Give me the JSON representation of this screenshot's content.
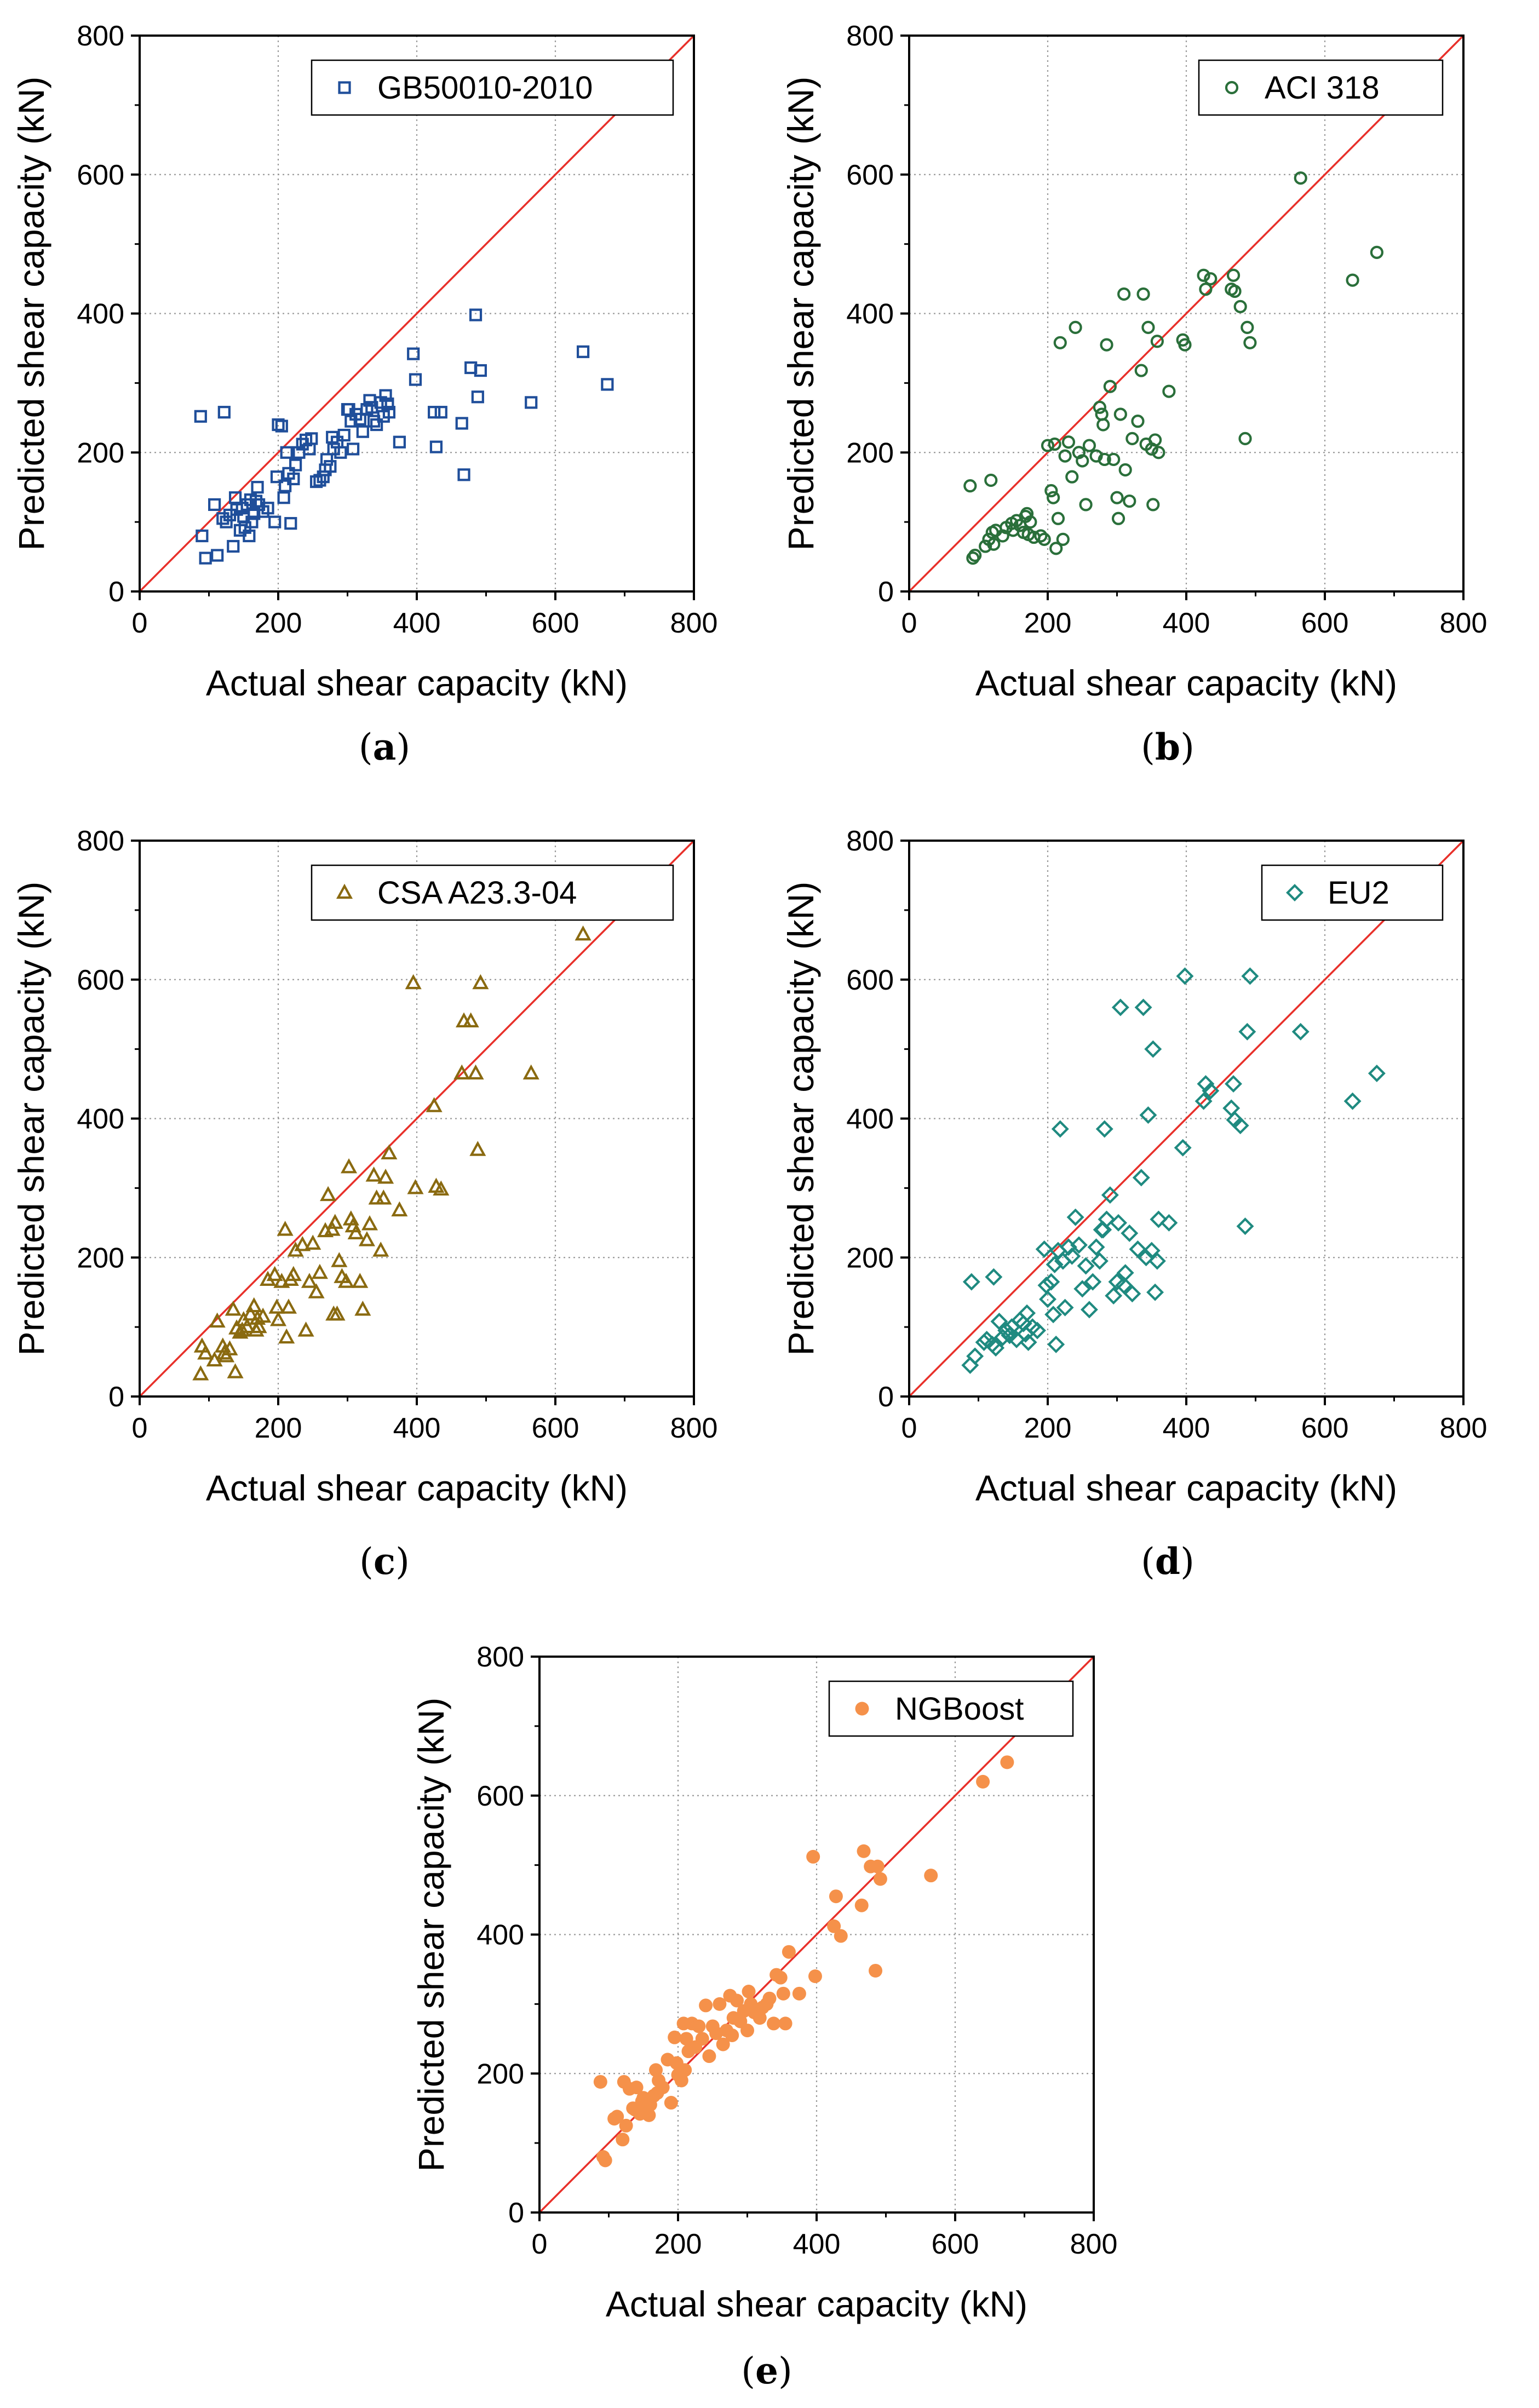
{
  "figure": {
    "xlabel": "Actual shear capacity (kN)",
    "ylabel": "Predicted shear capacity (kN)",
    "xlim": [
      0,
      800
    ],
    "ylim": [
      0,
      800
    ],
    "ticks": [
      "0",
      "200",
      "400",
      "600",
      "800"
    ]
  },
  "chart_data": [
    {
      "type": "scatter",
      "panel": "a",
      "caption": "a",
      "series_name": "GB50010-2010",
      "marker": "square-open",
      "color": "#1f4e9a",
      "reference_line": "y = x",
      "line_color": "#e8302a",
      "xlabel": "Actual shear capacity (kN)",
      "ylabel": "Predicted shear capacity (kN)",
      "xlim": [
        0,
        800
      ],
      "ylim": [
        0,
        800
      ],
      "x": [
        88,
        90,
        95,
        108,
        112,
        120,
        122,
        125,
        130,
        135,
        138,
        140,
        145,
        148,
        150,
        152,
        155,
        158,
        160,
        162,
        165,
        168,
        170,
        172,
        178,
        185,
        195,
        198,
        200,
        205,
        208,
        210,
        212,
        215,
        218,
        222,
        225,
        230,
        235,
        240,
        245,
        248,
        255,
        260,
        265,
        268,
        270,
        275,
        278,
        280,
        285,
        290,
        295,
        300,
        302,
        305,
        308,
        312,
        318,
        322,
        328,
        332,
        335,
        338,
        342,
        348,
        352,
        355,
        358,
        360,
        375,
        395,
        398,
        425,
        428,
        435,
        465,
        468,
        478,
        485,
        488,
        492,
        565,
        640,
        675
      ],
      "y": [
        252,
        80,
        48,
        125,
        52,
        105,
        258,
        100,
        110,
        65,
        135,
        118,
        88,
        120,
        108,
        92,
        125,
        80,
        132,
        100,
        112,
        130,
        150,
        125,
        115,
        120,
        100,
        165,
        240,
        238,
        135,
        152,
        200,
        170,
        98,
        162,
        182,
        200,
        212,
        218,
        205,
        220,
        158,
        160,
        165,
        175,
        190,
        180,
        222,
        205,
        215,
        200,
        225,
        262,
        262,
        245,
        205,
        255,
        248,
        230,
        262,
        275,
        265,
        245,
        240,
        272,
        252,
        282,
        270,
        258,
        215,
        342,
        305,
        258,
        208,
        258,
        242,
        168,
        322,
        398,
        280,
        318,
        272,
        345,
        298
      ]
    },
    {
      "type": "scatter",
      "panel": "b",
      "caption": "b",
      "series_name": "ACI 318",
      "marker": "circle-open",
      "color": "#2a6f3a",
      "reference_line": "y = x",
      "line_color": "#e8302a",
      "xlabel": "Actual shear capacity (kN)",
      "ylabel": "Predicted shear capacity (kN)",
      "xlim": [
        0,
        800
      ],
      "ylim": [
        0,
        800
      ],
      "x": [
        88,
        92,
        95,
        110,
        115,
        118,
        120,
        122,
        125,
        135,
        140,
        148,
        150,
        155,
        160,
        165,
        168,
        170,
        172,
        175,
        180,
        190,
        195,
        200,
        205,
        208,
        210,
        212,
        215,
        218,
        222,
        225,
        230,
        235,
        240,
        245,
        250,
        255,
        260,
        270,
        275,
        278,
        280,
        282,
        285,
        290,
        295,
        300,
        302,
        305,
        310,
        312,
        318,
        322,
        330,
        335,
        338,
        342,
        345,
        350,
        352,
        355,
        358,
        360,
        375,
        395,
        398,
        425,
        428,
        435,
        465,
        468,
        470,
        478,
        485,
        488,
        492,
        565,
        640,
        675
      ],
      "y": [
        152,
        48,
        52,
        65,
        75,
        160,
        85,
        68,
        88,
        80,
        92,
        98,
        88,
        102,
        95,
        85,
        108,
        112,
        82,
        100,
        78,
        80,
        75,
        210,
        145,
        135,
        212,
        62,
        105,
        358,
        75,
        195,
        215,
        165,
        380,
        200,
        188,
        125,
        210,
        195,
        265,
        255,
        240,
        190,
        355,
        295,
        190,
        135,
        105,
        255,
        428,
        175,
        130,
        220,
        245,
        318,
        428,
        212,
        380,
        205,
        125,
        218,
        360,
        200,
        288,
        362,
        355,
        455,
        435,
        450,
        435,
        455,
        432,
        410,
        220,
        380,
        358,
        595,
        448,
        488
      ]
    },
    {
      "type": "scatter",
      "panel": "c",
      "caption": "c",
      "series_name": "CSA A23.3-04",
      "marker": "triangle-open",
      "color": "#8a6a10",
      "reference_line": "y = x",
      "line_color": "#e8302a",
      "xlabel": "Actual shear capacity (kN)",
      "ylabel": "Predicted shear capacity (kN)",
      "xlim": [
        0,
        800
      ],
      "ylim": [
        0,
        800
      ],
      "x": [
        88,
        90,
        95,
        108,
        112,
        120,
        122,
        125,
        130,
        135,
        138,
        140,
        145,
        148,
        150,
        155,
        160,
        165,
        168,
        170,
        172,
        178,
        185,
        195,
        198,
        200,
        205,
        210,
        212,
        215,
        218,
        222,
        225,
        235,
        240,
        245,
        250,
        255,
        260,
        268,
        272,
        278,
        280,
        282,
        285,
        288,
        292,
        298,
        302,
        305,
        308,
        312,
        318,
        322,
        328,
        332,
        338,
        342,
        348,
        352,
        355,
        360,
        375,
        395,
        398,
        425,
        428,
        435,
        465,
        468,
        478,
        485,
        488,
        492,
        565,
        640
      ],
      "y": [
        32,
        72,
        62,
        52,
        108,
        72,
        62,
        58,
        68,
        125,
        35,
        98,
        92,
        95,
        110,
        100,
        118,
        130,
        95,
        112,
        100,
        115,
        168,
        175,
        128,
        110,
        165,
        240,
        85,
        128,
        168,
        175,
        210,
        218,
        95,
        165,
        220,
        150,
        178,
        238,
        290,
        240,
        118,
        250,
        118,
        195,
        172,
        165,
        330,
        255,
        245,
        235,
        165,
        125,
        225,
        248,
        318,
        285,
        210,
        285,
        315,
        350,
        268,
        595,
        300,
        418,
        302,
        298,
        465,
        540,
        540,
        465,
        355,
        595,
        465,
        665
      ]
    },
    {
      "type": "scatter",
      "panel": "d",
      "caption": "d",
      "series_name": "EU2",
      "marker": "diamond-open",
      "color": "#1f8a80",
      "reference_line": "y = x",
      "line_color": "#e8302a",
      "xlabel": "Actual shear capacity (kN)",
      "ylabel": "Predicted shear capacity (kN)",
      "xlim": [
        0,
        800
      ],
      "ylim": [
        0,
        800
      ],
      "x": [
        88,
        90,
        95,
        108,
        112,
        120,
        122,
        125,
        130,
        135,
        140,
        145,
        148,
        155,
        160,
        165,
        168,
        170,
        172,
        178,
        185,
        195,
        198,
        200,
        205,
        208,
        210,
        212,
        215,
        218,
        222,
        225,
        230,
        235,
        240,
        245,
        250,
        255,
        260,
        265,
        270,
        275,
        278,
        280,
        282,
        285,
        290,
        295,
        300,
        302,
        305,
        310,
        312,
        318,
        322,
        330,
        335,
        338,
        342,
        345,
        350,
        352,
        355,
        358,
        360,
        375,
        395,
        398,
        425,
        428,
        435,
        465,
        468,
        470,
        478,
        485,
        488,
        492,
        565,
        640,
        675
      ],
      "y": [
        45,
        165,
        58,
        78,
        82,
        75,
        172,
        70,
        108,
        85,
        95,
        88,
        100,
        82,
        110,
        105,
        90,
        120,
        78,
        100,
        95,
        212,
        160,
        140,
        165,
        118,
        190,
        75,
        210,
        385,
        195,
        128,
        215,
        202,
        258,
        218,
        155,
        188,
        125,
        165,
        215,
        195,
        240,
        240,
        385,
        255,
        290,
        145,
        165,
        250,
        560,
        160,
        178,
        235,
        148,
        212,
        315,
        560,
        200,
        405,
        210,
        500,
        150,
        195,
        255,
        250,
        358,
        605,
        425,
        450,
        440,
        415,
        450,
        398,
        390,
        245,
        525,
        605,
        525,
        425,
        465
      ]
    },
    {
      "type": "scatter",
      "panel": "e",
      "caption": "e",
      "series_name": "NGBoost",
      "marker": "circle-filled",
      "color": "#f5914a",
      "reference_line": "y = x",
      "line_color": "#e8302a",
      "xlabel": "Actual shear capacity (kN)",
      "ylabel": "Predicted shear capacity (kN)",
      "xlim": [
        0,
        800
      ],
      "ylim": [
        0,
        800
      ],
      "x": [
        88,
        92,
        95,
        108,
        112,
        120,
        122,
        125,
        130,
        135,
        138,
        140,
        145,
        148,
        150,
        155,
        158,
        160,
        165,
        168,
        170,
        172,
        178,
        185,
        190,
        195,
        198,
        200,
        205,
        208,
        210,
        212,
        215,
        220,
        225,
        230,
        235,
        240,
        245,
        250,
        255,
        260,
        265,
        270,
        275,
        278,
        280,
        285,
        290,
        295,
        300,
        302,
        305,
        310,
        312,
        318,
        322,
        328,
        332,
        338,
        342,
        348,
        352,
        355,
        360,
        375,
        395,
        398,
        425,
        428,
        435,
        465,
        468,
        478,
        485,
        488,
        492,
        565,
        640,
        675
      ],
      "y": [
        188,
        80,
        75,
        135,
        138,
        105,
        188,
        125,
        178,
        150,
        148,
        180,
        142,
        160,
        165,
        148,
        140,
        155,
        168,
        205,
        172,
        190,
        180,
        220,
        158,
        252,
        215,
        198,
        190,
        272,
        205,
        250,
        232,
        272,
        238,
        268,
        250,
        298,
        225,
        268,
        258,
        300,
        242,
        262,
        312,
        255,
        280,
        305,
        275,
        290,
        262,
        318,
        300,
        288,
        290,
        280,
        295,
        300,
        308,
        272,
        342,
        338,
        315,
        272,
        375,
        315,
        512,
        340,
        412,
        455,
        398,
        442,
        520,
        498,
        348,
        498,
        480,
        485,
        620,
        648
      ]
    }
  ]
}
